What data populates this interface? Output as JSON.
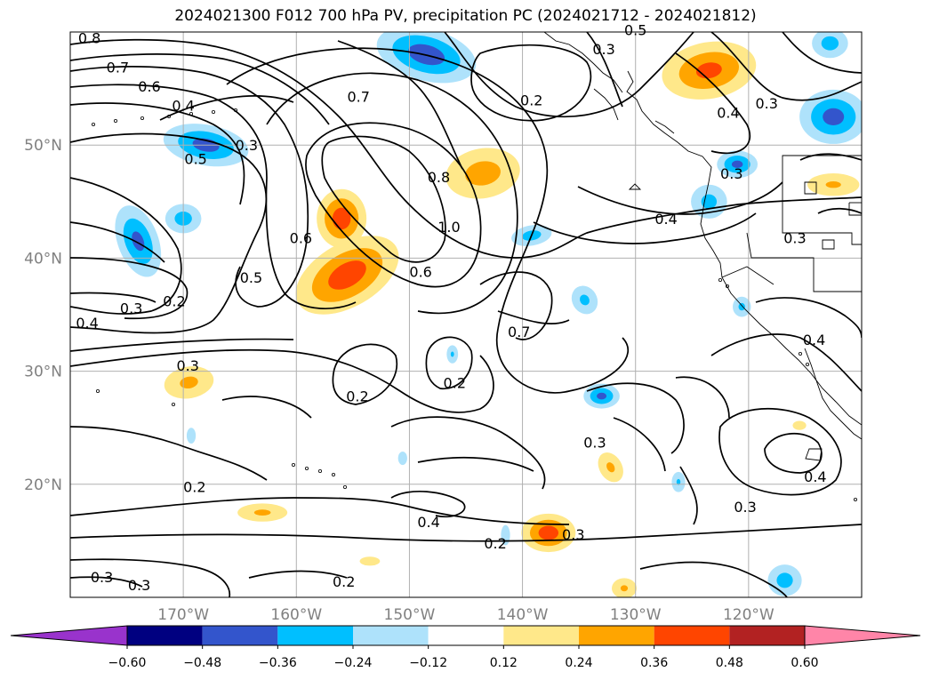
{
  "title": "2024021300 F012 700 hPa PV, precipitation PC (2024021712 - 2024021812)",
  "map": {
    "lon_range": [
      -180,
      -110
    ],
    "lat_range": [
      10,
      60
    ],
    "lat_ticks": [
      {
        "lat": 50,
        "label": "50°N"
      },
      {
        "lat": 40,
        "label": "40°N"
      },
      {
        "lat": 30,
        "label": "30°N"
      },
      {
        "lat": 20,
        "label": "20°N"
      }
    ],
    "lon_ticks": [
      {
        "lon": -170,
        "label": "170°W"
      },
      {
        "lon": -160,
        "label": "160°W"
      },
      {
        "lon": -150,
        "label": "150°W"
      },
      {
        "lon": -140,
        "label": "140°W"
      },
      {
        "lon": -130,
        "label": "130°W"
      },
      {
        "lon": -120,
        "label": "120°W"
      }
    ],
    "grid": true,
    "contour_labels": [
      {
        "t": "0.8",
        "lon": -178.3,
        "lat": 59.5
      },
      {
        "t": "0.7",
        "lon": -175.8,
        "lat": 56.9
      },
      {
        "t": "0.6",
        "lon": -173.0,
        "lat": 55.2
      },
      {
        "t": "0.4",
        "lon": -170.0,
        "lat": 53.5
      },
      {
        "t": "0.3",
        "lon": -164.4,
        "lat": 50.0
      },
      {
        "t": "0.5",
        "lon": -168.9,
        "lat": 48.8
      },
      {
        "t": "0.6",
        "lon": -159.6,
        "lat": 41.8
      },
      {
        "t": "0.5",
        "lon": -164.0,
        "lat": 38.3
      },
      {
        "t": "0.7",
        "lon": -154.5,
        "lat": 54.3
      },
      {
        "t": "0.8",
        "lon": -147.4,
        "lat": 47.2
      },
      {
        "t": "1.0",
        "lon": -146.5,
        "lat": 42.8
      },
      {
        "t": "0.6",
        "lon": -149.0,
        "lat": 38.8
      },
      {
        "t": "0.2",
        "lon": -139.2,
        "lat": 54.0
      },
      {
        "t": "0.3",
        "lon": -132.8,
        "lat": 58.5
      },
      {
        "t": "0.5",
        "lon": -130.0,
        "lat": 60.2
      },
      {
        "t": "0.4",
        "lon": -121.8,
        "lat": 52.9
      },
      {
        "t": "0.3",
        "lon": -118.4,
        "lat": 53.7
      },
      {
        "t": "0.3",
        "lon": -121.5,
        "lat": 47.5
      },
      {
        "t": "0.4",
        "lon": -127.3,
        "lat": 43.5
      },
      {
        "t": "0.3",
        "lon": -115.9,
        "lat": 41.8
      },
      {
        "t": "0.2",
        "lon": -170.8,
        "lat": 36.2
      },
      {
        "t": "0.3",
        "lon": -174.6,
        "lat": 35.6
      },
      {
        "t": "0.4",
        "lon": -178.5,
        "lat": 34.3
      },
      {
        "t": "0.7",
        "lon": -140.3,
        "lat": 33.5
      },
      {
        "t": "0.3",
        "lon": -169.6,
        "lat": 30.5
      },
      {
        "t": "0.2",
        "lon": -154.6,
        "lat": 27.8
      },
      {
        "t": "0.2",
        "lon": -146.0,
        "lat": 29.0
      },
      {
        "t": "0.3",
        "lon": -133.6,
        "lat": 23.7
      },
      {
        "t": "0.4",
        "lon": -114.2,
        "lat": 32.8
      },
      {
        "t": "0.4",
        "lon": -114.1,
        "lat": 20.7
      },
      {
        "t": "0.2",
        "lon": -169.0,
        "lat": 19.8
      },
      {
        "t": "0.4",
        "lon": -148.3,
        "lat": 16.7
      },
      {
        "t": "0.2",
        "lon": -142.4,
        "lat": 14.8
      },
      {
        "t": "0.3",
        "lon": -135.5,
        "lat": 15.6
      },
      {
        "t": "0.3",
        "lon": -120.3,
        "lat": 18.0
      },
      {
        "t": "0.3",
        "lon": -177.2,
        "lat": 11.8
      },
      {
        "t": "0.3",
        "lon": -173.9,
        "lat": 11.1
      },
      {
        "t": "0.2",
        "lon": -155.8,
        "lat": 11.4
      }
    ],
    "pc_blobs": [
      {
        "cls": "pos",
        "lon": -155.5,
        "lat": 38.5,
        "rx": 5,
        "ry": 2.8,
        "rot": -30,
        "max": 0.45
      },
      {
        "cls": "pos",
        "lon": -156.0,
        "lat": 43.5,
        "rx": 2.2,
        "ry": 2.6,
        "rot": 0,
        "max": 0.45
      },
      {
        "cls": "pos",
        "lon": -143.5,
        "lat": 47.5,
        "rx": 3.3,
        "ry": 2.2,
        "rot": -10,
        "max": 0.3
      },
      {
        "cls": "pos",
        "lon": -123.5,
        "lat": 56.6,
        "rx": 4.2,
        "ry": 2.5,
        "rot": -10,
        "max": 0.4
      },
      {
        "cls": "pos",
        "lon": -112.5,
        "lat": 46.5,
        "rx": 2.3,
        "ry": 1.0,
        "rot": 0,
        "max": 0.24
      },
      {
        "cls": "pos",
        "lon": -169.5,
        "lat": 29.0,
        "rx": 2.2,
        "ry": 1.4,
        "rot": -10,
        "max": 0.26
      },
      {
        "cls": "pos",
        "lon": -163.0,
        "lat": 17.5,
        "rx": 2.2,
        "ry": 0.8,
        "rot": 0,
        "max": 0.25
      },
      {
        "cls": "pos",
        "lon": -137.7,
        "lat": 15.7,
        "rx": 2.4,
        "ry": 1.7,
        "rot": 0,
        "max": 0.45
      },
      {
        "cls": "pos",
        "lon": -132.2,
        "lat": 21.5,
        "rx": 1.0,
        "ry": 1.4,
        "rot": -30,
        "max": 0.25
      },
      {
        "cls": "pos",
        "lon": -131.0,
        "lat": 10.8,
        "rx": 1.1,
        "ry": 0.9,
        "rot": 0,
        "max": 0.24
      },
      {
        "cls": "pos",
        "lon": -146.5,
        "lat": 23.5,
        "rx": 0.1,
        "ry": 0.1,
        "rot": 0,
        "max": 0.0
      },
      {
        "cls": "pos",
        "lon": -166.3,
        "lat": 26.8,
        "rx": 0.1,
        "ry": 0.1,
        "rot": 0,
        "max": 0.0
      },
      {
        "cls": "pos",
        "lon": -153.5,
        "lat": 13.2,
        "rx": 0.9,
        "ry": 0.4,
        "rot": 0,
        "max": 0.22
      },
      {
        "cls": "pos",
        "lon": -115.5,
        "lat": 25.2,
        "rx": 0.6,
        "ry": 0.4,
        "rot": 0,
        "max": 0.22
      },
      {
        "cls": "neg",
        "lon": -148.5,
        "lat": 58.0,
        "rx": 4.5,
        "ry": 2.3,
        "rot": 15,
        "max": 0.45
      },
      {
        "cls": "neg",
        "lon": -168.0,
        "lat": 50.0,
        "rx": 3.8,
        "ry": 1.8,
        "rot": 10,
        "max": 0.42
      },
      {
        "cls": "neg",
        "lon": -174.0,
        "lat": 41.5,
        "rx": 1.8,
        "ry": 3.3,
        "rot": -20,
        "max": 0.4
      },
      {
        "cls": "neg",
        "lon": -170.0,
        "lat": 43.5,
        "rx": 1.6,
        "ry": 1.3,
        "rot": 0,
        "max": 0.3
      },
      {
        "cls": "neg",
        "lon": -112.5,
        "lat": 52.5,
        "rx": 3.0,
        "ry": 2.4,
        "rot": 0,
        "max": 0.42
      },
      {
        "cls": "neg",
        "lon": -112.8,
        "lat": 59.0,
        "rx": 1.6,
        "ry": 1.3,
        "rot": 0,
        "max": 0.3
      },
      {
        "cls": "neg",
        "lon": -123.5,
        "lat": 45.0,
        "rx": 1.6,
        "ry": 1.5,
        "rot": 0,
        "max": 0.28
      },
      {
        "cls": "neg",
        "lon": -121.0,
        "lat": 48.3,
        "rx": 1.8,
        "ry": 1.2,
        "rot": 0,
        "max": 0.4
      },
      {
        "cls": "neg",
        "lon": -139.2,
        "lat": 42.0,
        "rx": 1.8,
        "ry": 0.9,
        "rot": -10,
        "max": 0.3
      },
      {
        "cls": "neg",
        "lon": -133.0,
        "lat": 27.8,
        "rx": 1.6,
        "ry": 1.1,
        "rot": 0,
        "max": 0.4
      },
      {
        "cls": "neg",
        "lon": -134.5,
        "lat": 36.3,
        "rx": 1.1,
        "ry": 1.3,
        "rot": -30,
        "max": 0.26
      },
      {
        "cls": "neg",
        "lon": -120.6,
        "lat": 35.7,
        "rx": 0.8,
        "ry": 0.9,
        "rot": 0,
        "max": 0.26
      },
      {
        "cls": "neg",
        "lon": -116.8,
        "lat": 11.5,
        "rx": 1.5,
        "ry": 1.4,
        "rot": 0,
        "max": 0.3
      },
      {
        "cls": "neg",
        "lon": -126.2,
        "lat": 20.2,
        "rx": 0.6,
        "ry": 0.9,
        "rot": 0,
        "max": 0.24
      },
      {
        "cls": "neg",
        "lon": -146.2,
        "lat": 31.5,
        "rx": 0.5,
        "ry": 0.8,
        "rot": 0,
        "max": 0.24
      },
      {
        "cls": "neg",
        "lon": -141.5,
        "lat": 15.5,
        "rx": 0.4,
        "ry": 0.9,
        "rot": 0,
        "max": 0.23
      },
      {
        "cls": "neg",
        "lon": -169.3,
        "lat": 24.3,
        "rx": 0.4,
        "ry": 0.7,
        "rot": 0,
        "max": 0.22
      },
      {
        "cls": "neg",
        "lon": -150.6,
        "lat": 22.3,
        "rx": 0.4,
        "ry": 0.6,
        "rot": 0,
        "max": 0.2
      }
    ]
  },
  "colorbar": {
    "ticks": [
      "−0.60",
      "−0.48",
      "−0.36",
      "−0.24",
      "−0.12",
      "0.12",
      "0.24",
      "0.36",
      "0.48",
      "0.60"
    ],
    "colors": [
      "#9933cc",
      "#000080",
      "#3355cc",
      "#00bfff",
      "#aee2fb",
      "#ffffff",
      "#ffe88a",
      "#ffa500",
      "#ff4500",
      "#b22222",
      "#ff85a8"
    ]
  }
}
